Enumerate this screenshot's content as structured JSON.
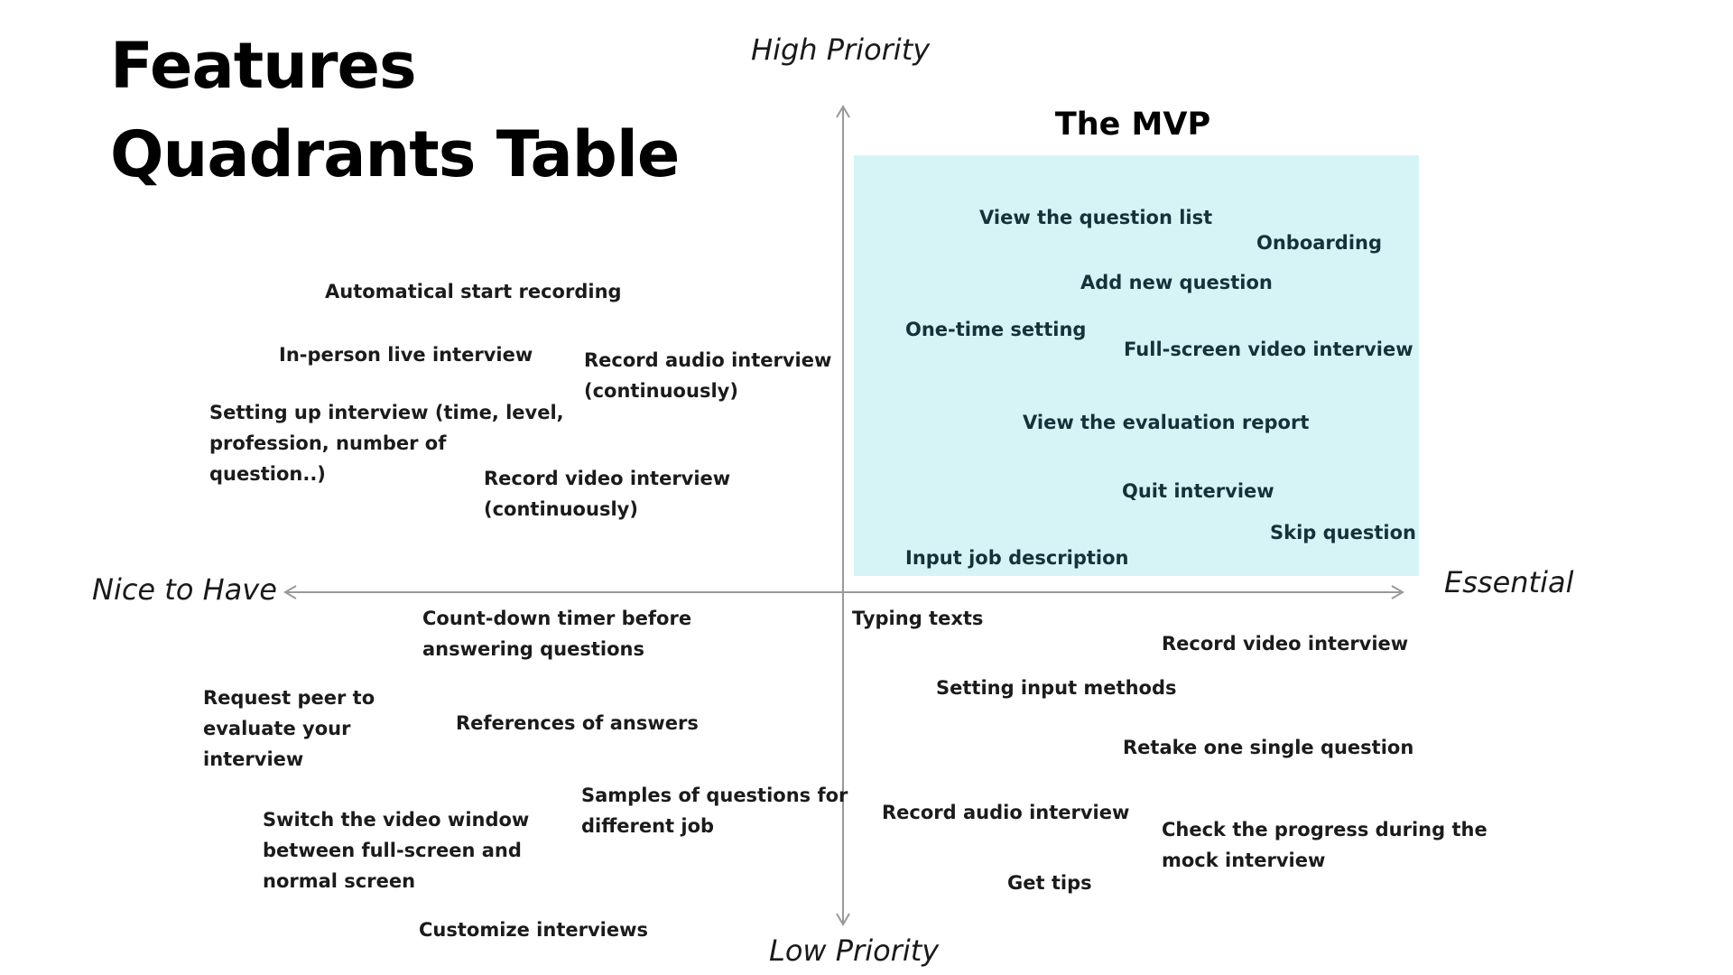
{
  "title": {
    "line1": "Features",
    "line2": "Quadrants Table"
  },
  "axes": {
    "top": "High Priority",
    "bottom": "Low Priority",
    "left": "Nice to Have",
    "right": "Essential",
    "color": "#999999"
  },
  "mvp": {
    "title": "The MVP",
    "box_color": "#d6f4f6",
    "items": [
      [
        "View the question list"
      ],
      [
        "Onboarding"
      ],
      [
        "Add new question"
      ],
      [
        "One-time setting"
      ],
      [
        "Full-screen video interview"
      ],
      [
        "View the evaluation report"
      ],
      [
        "Quit interview"
      ],
      [
        "Skip question"
      ],
      [
        "Input job description"
      ]
    ]
  },
  "nice_high": {
    "items": [
      [
        "Automatical start recording"
      ],
      [
        "In-person live interview"
      ],
      [
        "Record audio interview",
        "(continuously)"
      ],
      [
        "Setting up interview (time, level,",
        "profession, number of",
        "question..)"
      ],
      [
        "Record video interview",
        "(continuously)"
      ]
    ]
  },
  "nice_low": {
    "items": [
      [
        "Count-down timer before",
        "answering questions"
      ],
      [
        "Request peer to",
        "evaluate your",
        "interview"
      ],
      [
        "References of answers"
      ],
      [
        "Samples of questions for",
        "different job"
      ],
      [
        "Switch the video window",
        "between full-screen and",
        "normal screen"
      ],
      [
        "Customize interviews"
      ]
    ]
  },
  "essential_low": {
    "items": [
      [
        "Typing texts"
      ],
      [
        "Record video interview"
      ],
      [
        "Setting input methods"
      ],
      [
        "Retake one single question"
      ],
      [
        "Record audio interview"
      ],
      [
        "Check the progress during the",
        "mock interview"
      ],
      [
        "Get tips"
      ]
    ]
  }
}
